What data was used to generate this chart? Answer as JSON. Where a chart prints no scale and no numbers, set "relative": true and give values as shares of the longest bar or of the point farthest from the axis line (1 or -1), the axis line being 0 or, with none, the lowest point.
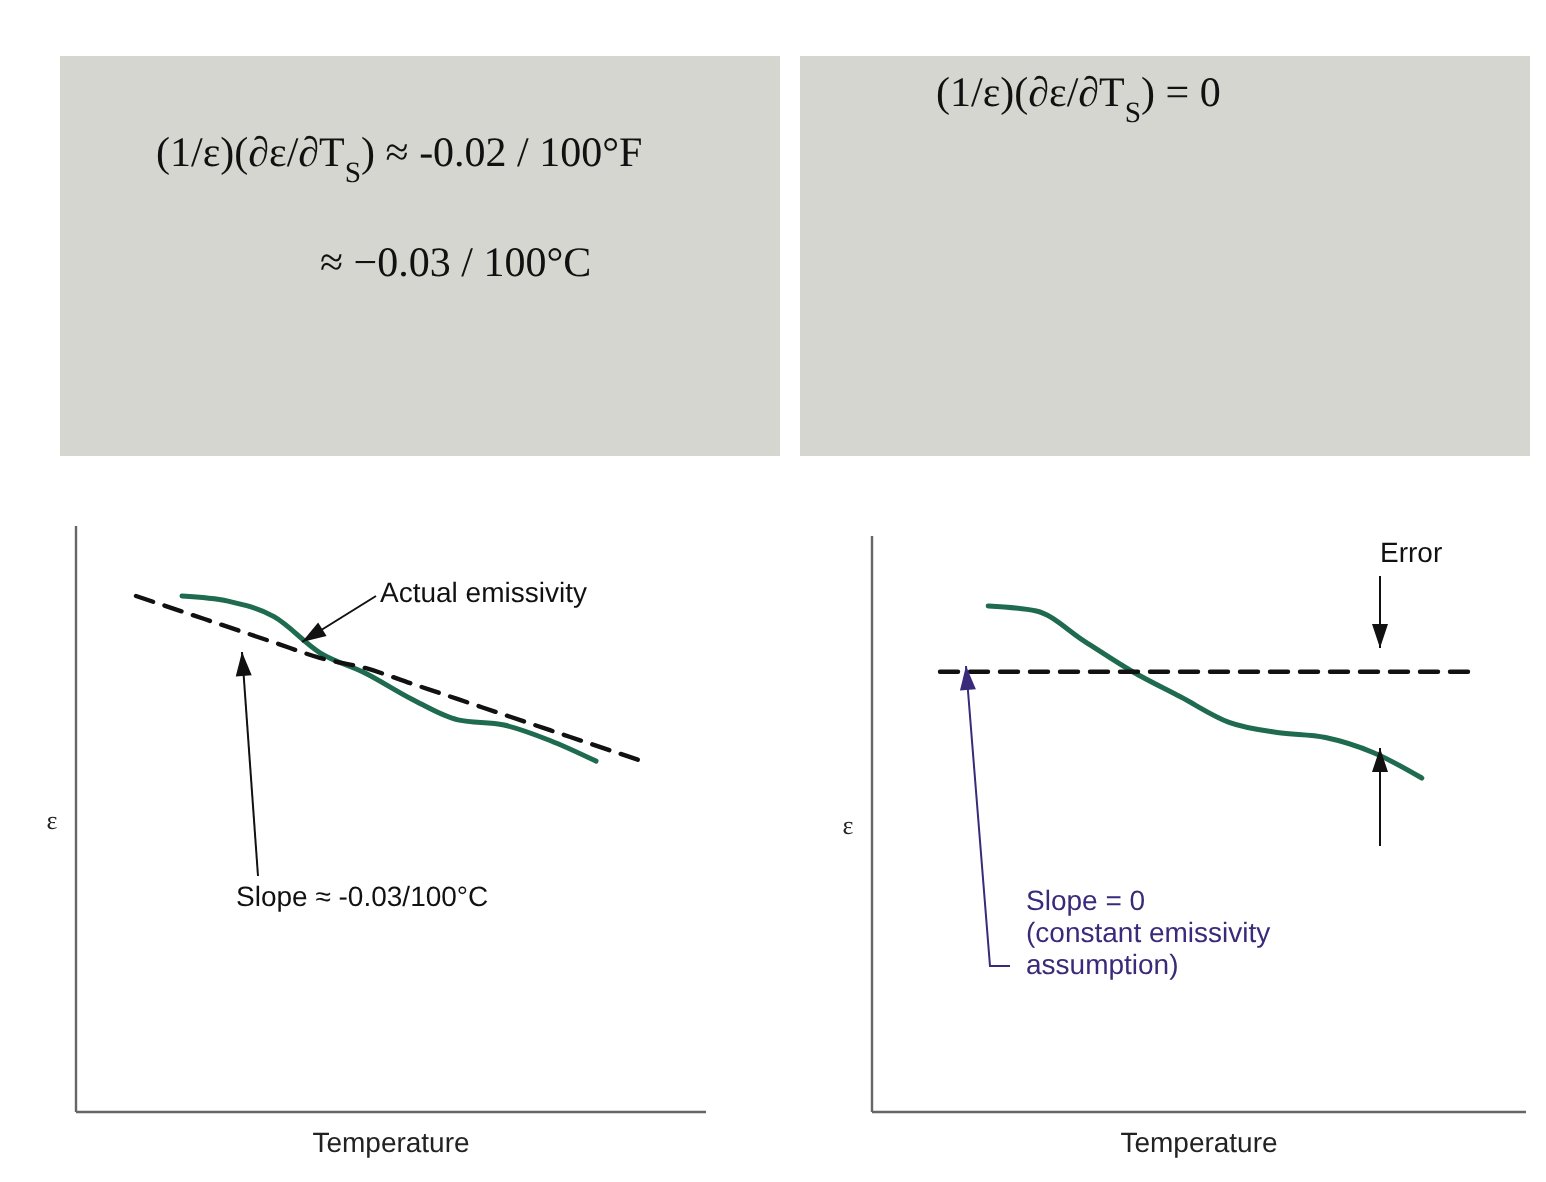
{
  "chart_data": [
    {
      "type": "line",
      "title": "(1/ε)(∂ε/∂T$_{S}$) ≈ -0.02 / 100°F",
      "subtitle": "≈ −0.03 / 100°C",
      "xlabel": "Temperature",
      "ylabel": "ε",
      "relative": true,
      "annotations": [
        "Actual emissivity",
        "Slope ≈ -0.03/100°C"
      ],
      "categories": [
        null,
        null,
        null,
        null,
        null,
        null,
        null,
        null,
        null,
        null,
        null,
        null
      ],
      "series": [
        {
          "color": "#1f6b4f",
          "line_style": "solid",
          "values": [
            null,
            1.0,
            0.99,
            0.96,
            0.89,
            0.85,
            0.8,
            0.76,
            0.75,
            0.72,
            0.68,
            null
          ]
        },
        {
          "color": "#111111",
          "line_style": "dashed",
          "values": [
            1.0,
            0.97,
            0.94,
            0.91,
            0.88,
            0.86,
            0.83,
            0.8,
            0.77,
            0.74,
            0.71,
            0.68
          ]
        }
      ]
    },
    {
      "type": "line",
      "title": "(1/ε)(∂ε/∂T$_{S}$) = 0",
      "xlabel": "Temperature",
      "ylabel": "ε",
      "relative": true,
      "annotations": [
        "Error",
        "Slope = 0\n(constant emissivity\nassumption)"
      ],
      "categories": [
        null,
        null,
        null,
        null,
        null,
        null,
        null,
        null,
        null,
        null,
        null,
        null
      ],
      "series": [
        {
          "color": "#1f6b4f",
          "line_style": "solid",
          "values": [
            null,
            1.0,
            0.99,
            0.93,
            0.87,
            0.82,
            0.77,
            0.75,
            0.74,
            0.71,
            0.66,
            null
          ]
        },
        {
          "color": "#111111",
          "line_style": "dashed",
          "values": [
            0.87,
            0.87,
            0.87,
            0.87,
            0.87,
            0.87,
            0.87,
            0.87,
            0.87,
            0.87,
            0.87,
            0.87
          ]
        }
      ]
    }
  ]
}
